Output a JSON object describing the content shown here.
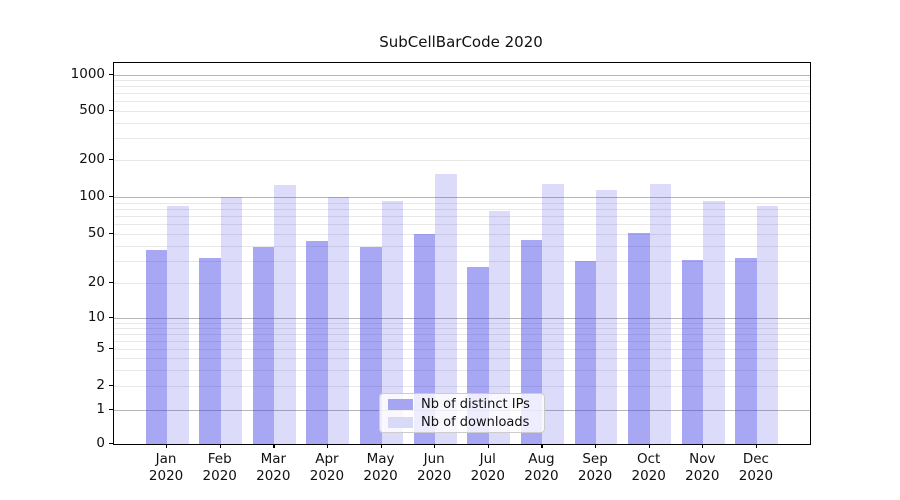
{
  "title": "SubCellBarCode 2020",
  "colors": {
    "bar_distinct_ips": "rgba(60,60,228,0.45)",
    "bar_downloads": "rgba(60,60,228,0.18)",
    "legend_swatch_distinct_ips": "#a5a5f0",
    "legend_swatch_downloads": "#d9d9f8",
    "grid_major": "#b6b6b6",
    "grid_minor": "#e8e8e8",
    "axis": "#000000"
  },
  "chart_data": {
    "type": "bar",
    "title": "SubCellBarCode 2020",
    "categories": [
      "Jan 2020",
      "Feb 2020",
      "Mar 2020",
      "Apr 2020",
      "May 2020",
      "Jun 2020",
      "Jul 2020",
      "Aug 2020",
      "Sep 2020",
      "Oct 2020",
      "Nov 2020",
      "Dec 2020"
    ],
    "month_labels": [
      "Jan",
      "Feb",
      "Mar",
      "Apr",
      "May",
      "Jun",
      "Jul",
      "Aug",
      "Sep",
      "Oct",
      "Nov",
      "Dec"
    ],
    "year_label": "2020",
    "series": [
      {
        "name": "Nb of distinct IPs",
        "values": [
          37,
          32,
          39,
          44,
          39,
          50,
          27,
          45,
          30,
          51,
          31,
          32
        ]
      },
      {
        "name": "Nb of downloads",
        "values": [
          85,
          100,
          125,
          100,
          93,
          155,
          77,
          128,
          114,
          127,
          93,
          85
        ]
      }
    ],
    "y_axis": {
      "scale": "symlog",
      "ticks": [
        0,
        1,
        2,
        5,
        10,
        20,
        50,
        100,
        200,
        500,
        1000
      ],
      "range": [
        0,
        1000
      ]
    },
    "x_axis": {
      "tick_labels_two_lines": true
    },
    "grid": true,
    "legend": {
      "position": "lower center",
      "items": [
        "Nb of distinct IPs",
        "Nb of downloads"
      ]
    }
  }
}
